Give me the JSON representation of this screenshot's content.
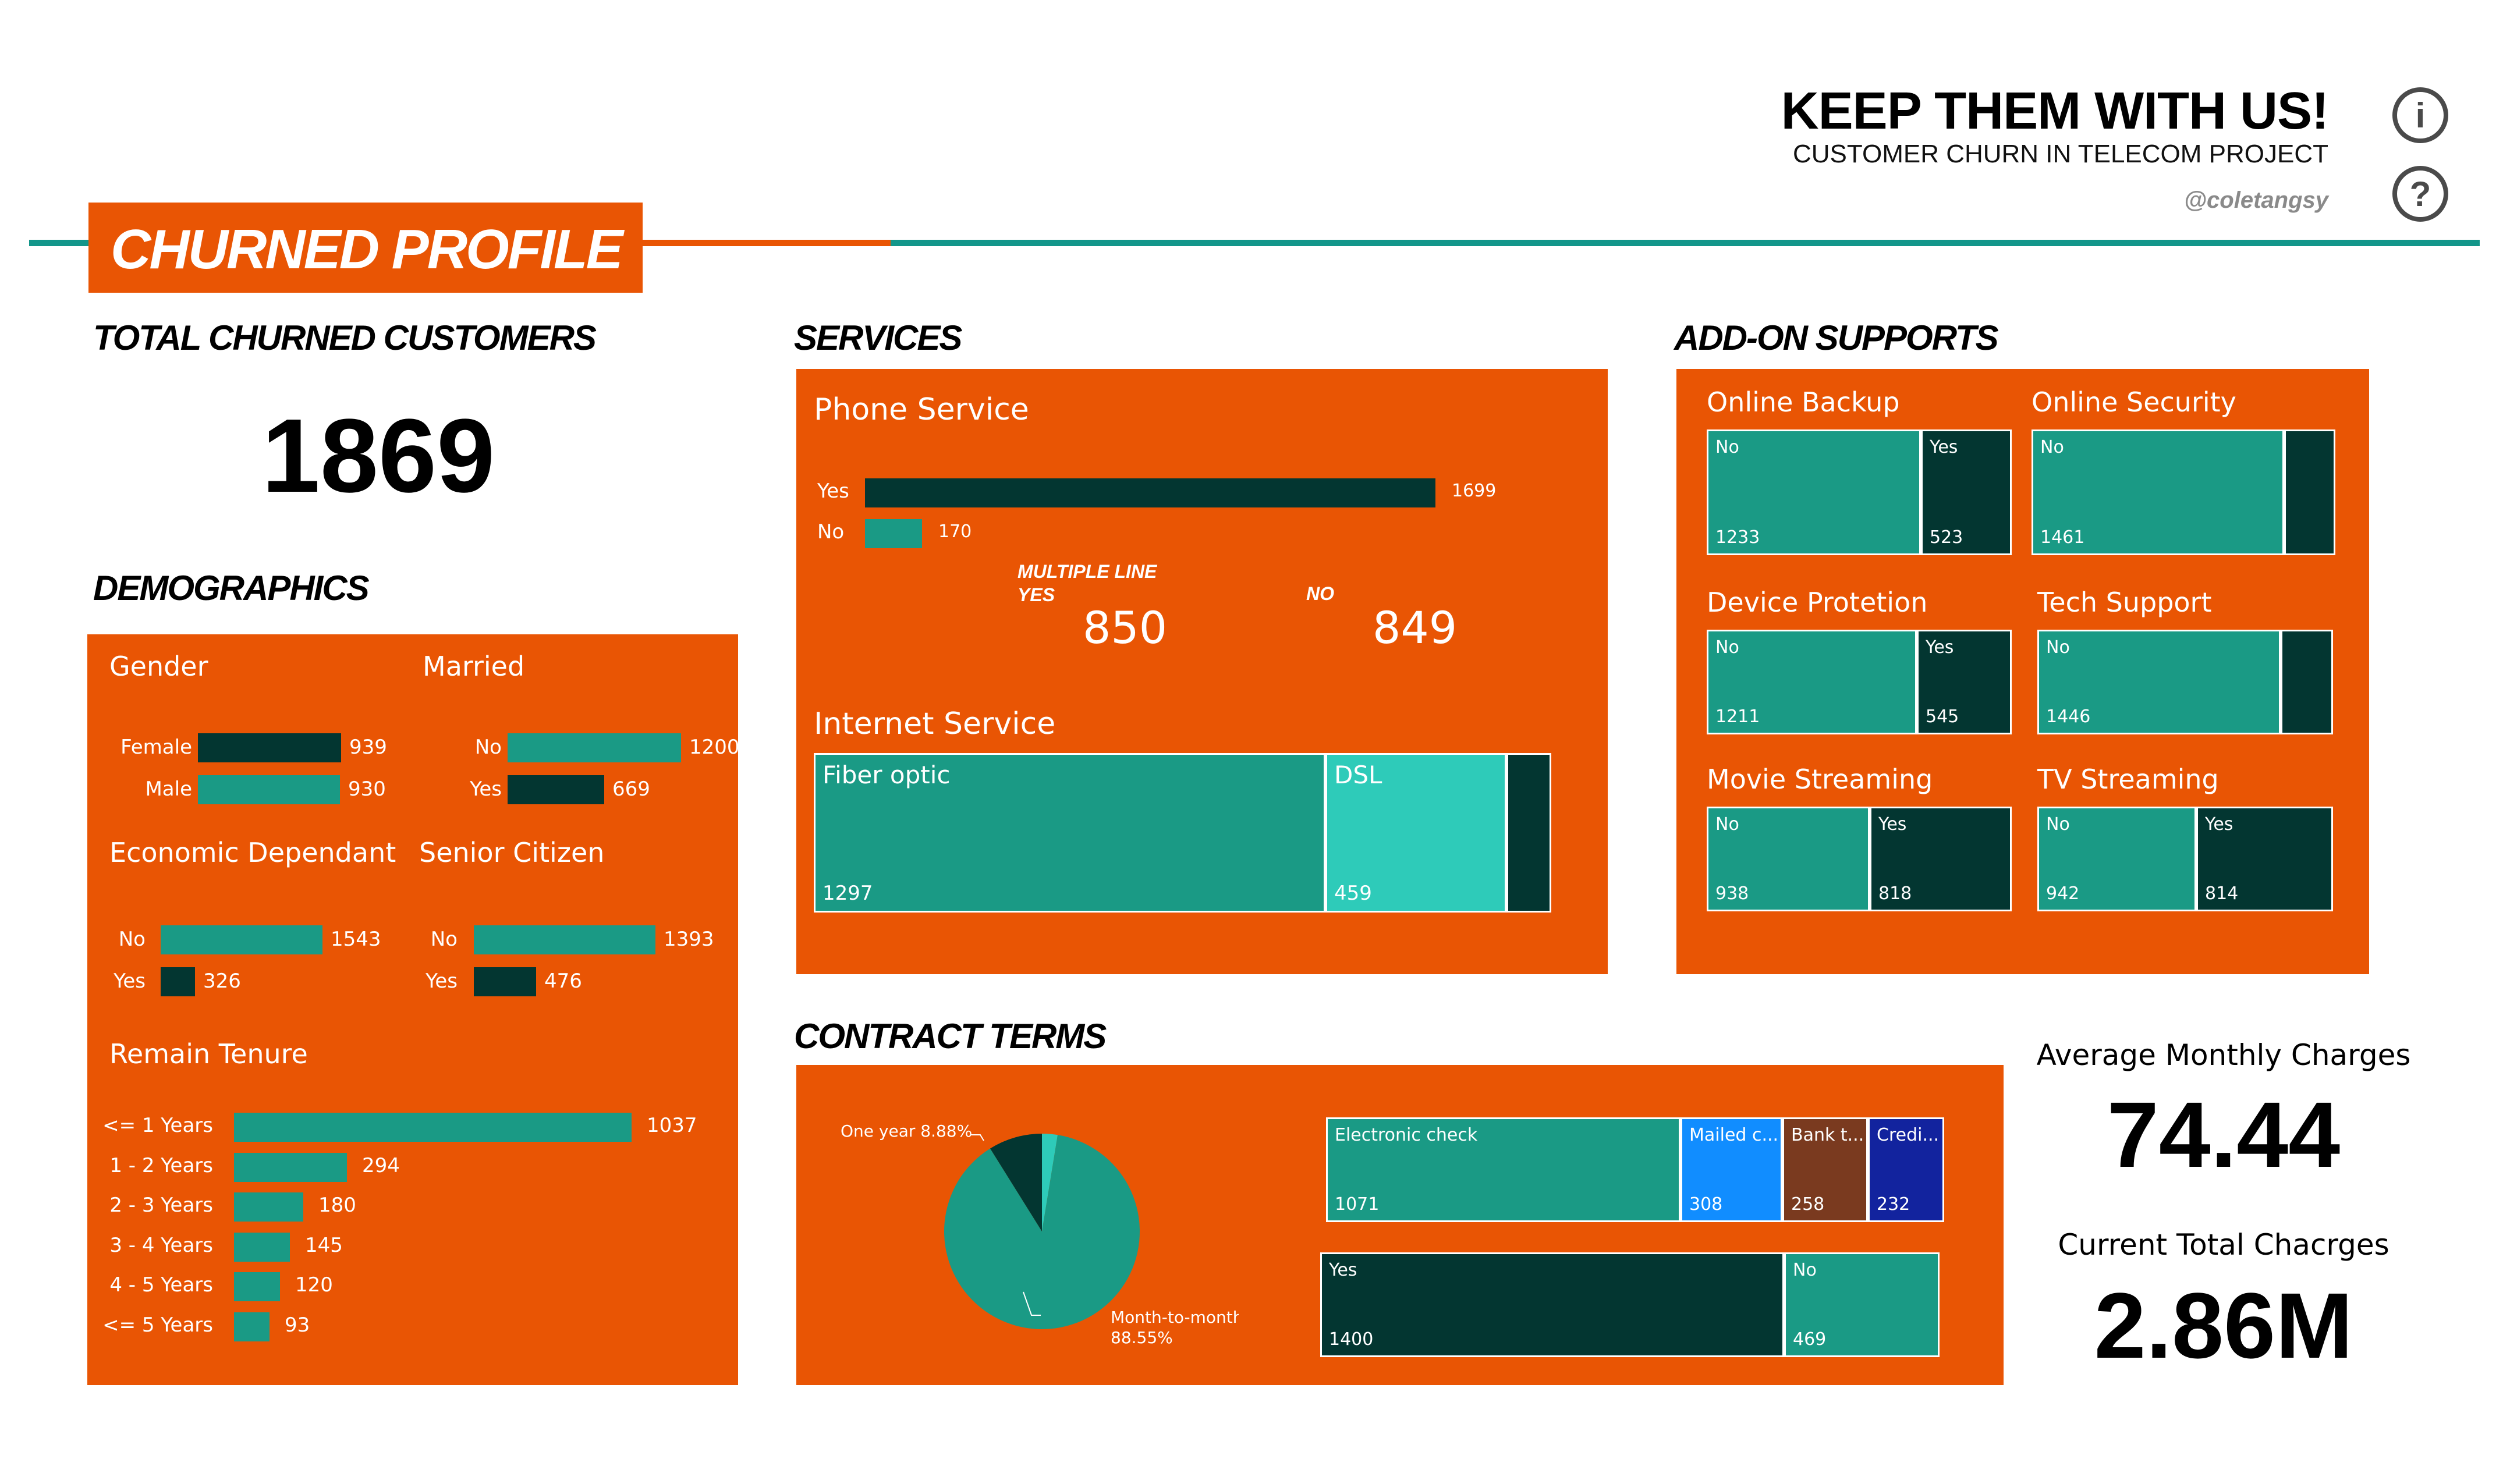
{
  "header": {
    "title": "KEEP THEM WITH US!",
    "subtitle": "CUSTOMER CHURN IN TELECOM PROJECT",
    "handle": "@coletangsy",
    "info_icon": "info-icon",
    "help_icon": "help-icon",
    "info_glyph": "i",
    "help_glyph": "?"
  },
  "page_title": "CHURNED PROFILE",
  "colors": {
    "orange": "#e95504",
    "teal": "#1a9a85",
    "dark": "#033631",
    "light_teal": "#2ecbb9",
    "rule_teal": "#13968a"
  },
  "total": {
    "heading": "TOTAL CHURNED CUSTOMERS",
    "value": "1869"
  },
  "demographics": {
    "heading": "DEMOGRAPHICS",
    "gender": {
      "title": "Gender",
      "rows": [
        {
          "label": "Female",
          "value": 939
        },
        {
          "label": "Male",
          "value": 930
        }
      ]
    },
    "married": {
      "title": "Married",
      "rows": [
        {
          "label": "No",
          "value": 1200
        },
        {
          "label": "Yes",
          "value": 669
        }
      ]
    },
    "dependant": {
      "title": "Economic Dependant",
      "rows": [
        {
          "label": "No",
          "value": 1543
        },
        {
          "label": "Yes",
          "value": 326
        }
      ]
    },
    "senior": {
      "title": "Senior Citizen",
      "rows": [
        {
          "label": "No",
          "value": 1393
        },
        {
          "label": "Yes",
          "value": 476
        }
      ]
    },
    "tenure": {
      "title": "Remain Tenure",
      "rows": [
        {
          "label": "<= 1 Years",
          "value": 1037
        },
        {
          "label": "1 - 2 Years",
          "value": 294
        },
        {
          "label": "2 - 3 Years",
          "value": 180
        },
        {
          "label": "3 - 4 Years",
          "value": 145
        },
        {
          "label": "4 - 5 Years",
          "value": 120
        },
        {
          "label": "<= 5 Years",
          "value": 93
        }
      ]
    }
  },
  "services": {
    "heading": "SERVICES",
    "phone": {
      "title": "Phone Service",
      "rows": [
        {
          "label": "Yes",
          "value": 1699
        },
        {
          "label": "No",
          "value": 170
        }
      ]
    },
    "multiple_line": {
      "label_yes": "MULTIPLE LINE\nYES",
      "label_no": "NO",
      "yes": "850",
      "no": "849"
    },
    "internet": {
      "title": "Internet Service",
      "items": [
        {
          "label": "Fiber optic",
          "value": "1297",
          "count": 1297
        },
        {
          "label": "DSL",
          "value": "459",
          "count": 459
        },
        {
          "label": "",
          "value": "",
          "count": 113
        }
      ]
    }
  },
  "addons": {
    "heading": "ADD-ON SUPPORTS",
    "items": [
      {
        "title": "Online Backup",
        "no_label": "No",
        "no": "1233",
        "no_count": 1233,
        "yes_label": "Yes",
        "yes": "523",
        "yes_count": 523
      },
      {
        "title": "Online Security",
        "no_label": "No",
        "no": "1461",
        "no_count": 1461,
        "yes_label": "",
        "yes": "",
        "yes_count": 295
      },
      {
        "title": "Device Protetion",
        "no_label": "No",
        "no": "1211",
        "no_count": 1211,
        "yes_label": "Yes",
        "yes": "545",
        "yes_count": 545
      },
      {
        "title": "Tech Support",
        "no_label": "No",
        "no": "1446",
        "no_count": 1446,
        "yes_label": "",
        "yes": "",
        "yes_count": 310
      },
      {
        "title": "Movie Streaming",
        "no_label": "No",
        "no": "938",
        "no_count": 938,
        "yes_label": "Yes",
        "yes": "818",
        "yes_count": 818
      },
      {
        "title": "TV Streaming",
        "no_label": "No",
        "no": "942",
        "no_count": 942,
        "yes_label": "Yes",
        "yes": "814",
        "yes_count": 814
      }
    ]
  },
  "contract": {
    "heading": "CONTRACT TERMS",
    "pie": [
      {
        "label": "Month-to-month",
        "pct_label": "88.55%",
        "pct": 88.55,
        "color": "#1a9a85"
      },
      {
        "label": "One year",
        "pct_label": "8.88%",
        "pct": 8.88,
        "color": "#033631"
      },
      {
        "label": "",
        "pct_label": "",
        "pct": 2.57,
        "color": "#2ecbb9"
      }
    ],
    "one_year_label": "One year 8.88%",
    "m2m_label_1": "Month-to-month",
    "m2m_label_2": "88.55%",
    "payment": [
      {
        "label": "Electronic check",
        "value": "1071",
        "count": 1071,
        "color": "#1a9a85"
      },
      {
        "label": "Mailed c...",
        "value": "308",
        "count": 308,
        "color": "#118dff"
      },
      {
        "label": "Bank t...",
        "value": "258",
        "count": 258,
        "color": "#7a3a1f"
      },
      {
        "label": "Credi...",
        "value": "232",
        "count": 232,
        "color": "#12239e"
      }
    ],
    "paperless": [
      {
        "label": "Yes",
        "value": "1400",
        "count": 1400,
        "color": "#033631"
      },
      {
        "label": "No",
        "value": "469",
        "count": 469,
        "color": "#1a9a85"
      }
    ]
  },
  "kpis": {
    "avg_label": "Average Monthly Charges",
    "avg_value": "74.44",
    "total_label": "Current Total Chacrges",
    "total_value": "2.86M"
  }
}
